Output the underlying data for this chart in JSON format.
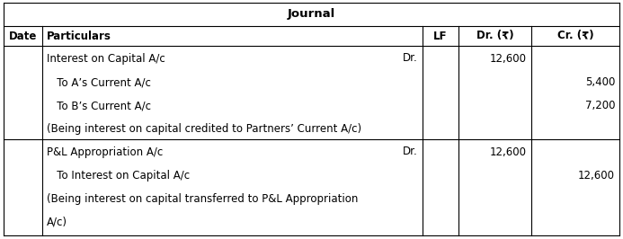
{
  "title": "Journal",
  "headers": [
    "Date",
    "Particulars",
    "LF",
    "Dr. (₹)",
    "Cr. (₹)"
  ],
  "section1_rows": [
    {
      "particulars": "Interest on Capital A/c",
      "dr_tag": "Dr.",
      "dr": "12,600",
      "cr": ""
    },
    {
      "particulars": "   To A’s Current A/c",
      "dr_tag": "",
      "dr": "",
      "cr": "5,400"
    },
    {
      "particulars": "   To B’s Current A/c",
      "dr_tag": "",
      "dr": "",
      "cr": "7,200"
    },
    {
      "particulars": "(Being interest on capital credited to Partners’ Current A/c)",
      "dr_tag": "",
      "dr": "",
      "cr": ""
    }
  ],
  "section2_rows": [
    {
      "particulars": "P&L Appropriation A/c",
      "dr_tag": "Dr.",
      "dr": "12,600",
      "cr": ""
    },
    {
      "particulars": "   To Interest on Capital A/c",
      "dr_tag": "",
      "dr": "",
      "cr": "12,600"
    },
    {
      "particulars": "(Being interest on capital transferred to P&L Appropriation",
      "dr_tag": "",
      "dr": "",
      "cr": ""
    },
    {
      "particulars": "A/c)",
      "dr_tag": "",
      "dr": "",
      "cr": ""
    }
  ],
  "bg_color": "#ffffff",
  "font_size": 8.5,
  "title_font_size": 9.5,
  "lw": 0.8
}
